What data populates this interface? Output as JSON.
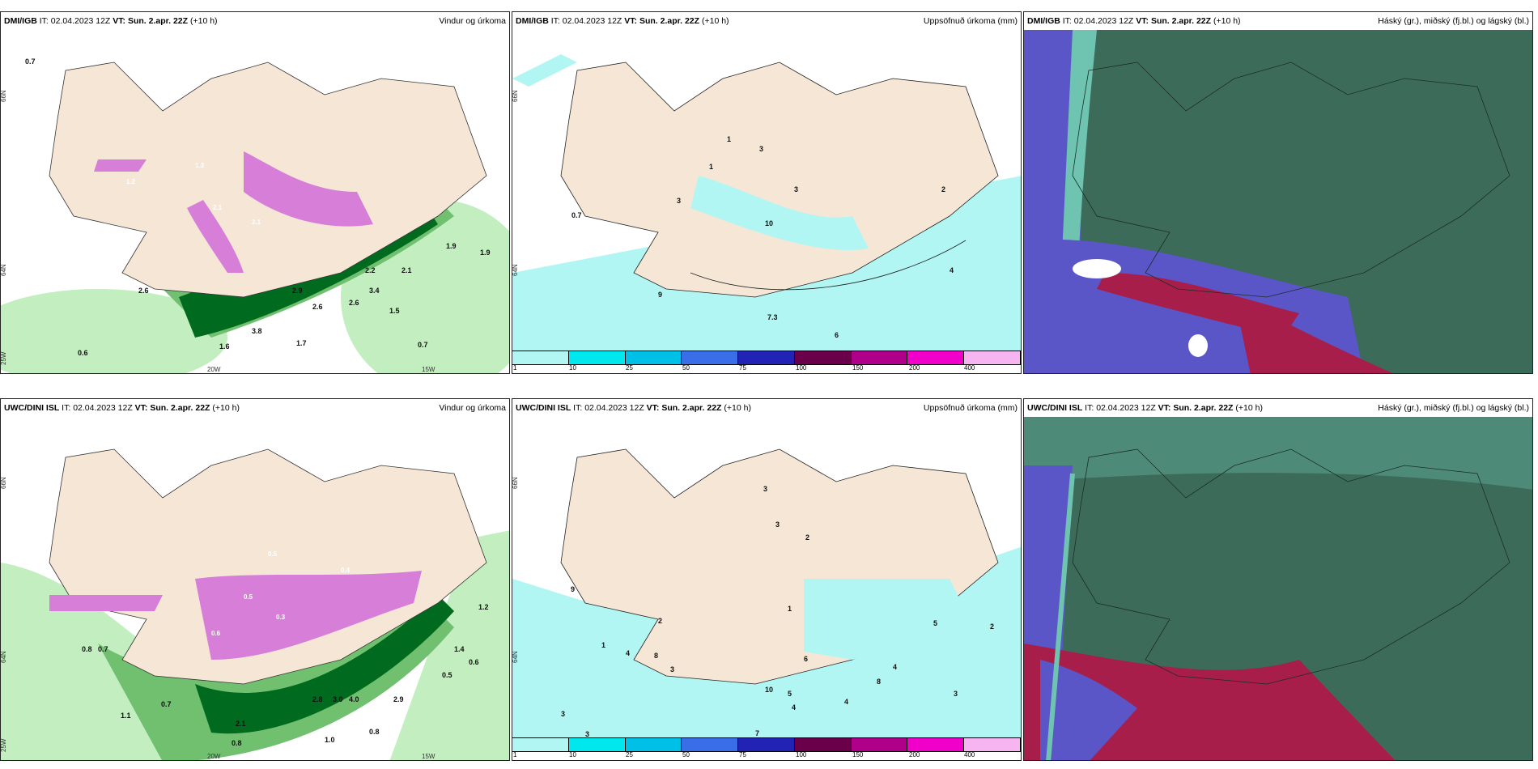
{
  "panels": {
    "top_left": {
      "model": "DMI/IGB",
      "it_label": "IT:",
      "it": "02.04.2023 12Z",
      "vt_label": "VT:",
      "vt": "Sun. 2.apr. 22Z",
      "lead": "(+10 h)",
      "title": "Vindur og úrkoma"
    },
    "top_mid": {
      "model": "DMI/IGB",
      "it_label": "IT:",
      "it": "02.04.2023 12Z",
      "vt_label": "VT:",
      "vt": "Sun. 2.apr. 22Z",
      "lead": "(+10 h)",
      "title": "Uppsöfnuð úrkoma (mm)"
    },
    "top_right": {
      "model": "DMI/IGB",
      "it_label": "IT:",
      "it": "02.04.2023 12Z",
      "vt_label": "VT:",
      "vt": "Sun. 2.apr. 22Z",
      "lead": "(+10 h)",
      "title": "Háský (gr.), miðský (fj.bl.) og lágský (bl.)"
    },
    "bottom_left": {
      "model": "UWC/DINI ISL",
      "it_label": "IT:",
      "it": "02.04.2023 12Z",
      "vt_label": "VT:",
      "vt": "Sun. 2.apr. 22Z",
      "lead": "(+10 h)",
      "title": "Vindur og úrkoma"
    },
    "bottom_mid": {
      "model": "UWC/DINI ISL",
      "it_label": "IT:",
      "it": "02.04.2023 12Z",
      "vt_label": "VT:",
      "vt": "Sun. 2.apr. 22Z",
      "lead": "(+10 h)",
      "title": "Uppsöfnuð úrkoma (mm)"
    },
    "bottom_right": {
      "model": "UWC/DINI ISL",
      "it_label": "IT:",
      "it": "02.04.2023 12Z",
      "vt_label": "VT:",
      "vt": "Sun. 2.apr. 22Z",
      "lead": "(+10 h)",
      "title": "Háský (gr.), miðský (fj.bl.) og lágský (bl.)"
    }
  },
  "axis_labels": {
    "lat66": "66N",
    "lat64": "64N",
    "lon25": "25W",
    "lon20": "20W",
    "lon15": "15W"
  },
  "precip_legend": {
    "ticks": [
      "1",
      "10",
      "25",
      "50",
      "75",
      "100",
      "150",
      "200",
      "400"
    ],
    "colors": [
      "#b2f6f4",
      "#00e8ee",
      "#00c0e8",
      "#3a6ee8",
      "#2222b4",
      "#6a004a",
      "#b0008a",
      "#f000c8",
      "#f6b4f0"
    ]
  },
  "wind_values": {
    "top": [
      "0.7",
      "1.2",
      "1.3",
      "2.1",
      "2.1",
      "2.6",
      "2.6",
      "2.6",
      "2.9",
      "3.4",
      "2.2",
      "2.1",
      "1.9",
      "1.9",
      "1.5",
      "1.7",
      "3.8",
      "1.6",
      "0.7",
      "0.6"
    ],
    "bottom": [
      "0.5",
      "0.4",
      "0.3",
      "0.5",
      "0.6",
      "0.8",
      "0.7",
      "1.1",
      "0.7",
      "2.1",
      "2.8",
      "3.0",
      "4.0",
      "2.9",
      "1.4",
      "0.6",
      "0.5",
      "1.2",
      "0.8",
      "1.0",
      "0.8"
    ]
  },
  "accum_values": {
    "top": [
      "1",
      "3",
      "1",
      "3",
      "3",
      "0.7",
      "10",
      "2",
      "4",
      "9",
      "6",
      "7.3"
    ],
    "bottom": [
      "3",
      "3",
      "2",
      "9",
      "1",
      "1",
      "2",
      "3",
      "4",
      "8",
      "3",
      "3",
      "7",
      "10",
      "5",
      "4",
      "6",
      "4",
      "8",
      "4",
      "3",
      "2",
      "5"
    ]
  },
  "colors": {
    "land": "#f5e6d6",
    "sea_precip": "#b2f6f4",
    "green_light": "#c2eec0",
    "green_mid": "#70c070",
    "green_dark": "#006a1e",
    "magenta": "#d77ed8",
    "cloud_high": "#3d6b5a",
    "cloud_mid_teal": "#6ec4b0",
    "cloud_low_blue": "#5a56c8",
    "cloud_red": "#a81e4a"
  }
}
